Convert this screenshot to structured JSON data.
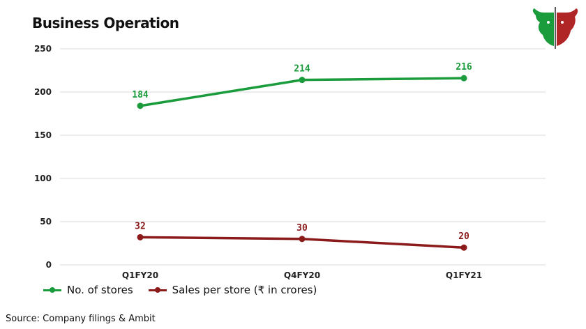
{
  "title": "Business Operation",
  "source": "Source: Company filings & Ambit",
  "logo_icon": "bull-bear-icon",
  "chart_data": {
    "type": "line",
    "categories": [
      "Q1FY20",
      "Q4FY20",
      "Q1FY21"
    ],
    "ylim": [
      0,
      250
    ],
    "yticks": [
      0,
      50,
      100,
      150,
      200,
      250
    ],
    "grid": true,
    "legend_position": "bottom-left",
    "series": [
      {
        "name": "No. of stores",
        "values": [
          184,
          214,
          216
        ],
        "color": "#1a9b3c"
      },
      {
        "name": "Sales per store (₹ in crores)",
        "values": [
          32,
          30,
          20
        ],
        "color": "#8b1a1a"
      }
    ]
  }
}
